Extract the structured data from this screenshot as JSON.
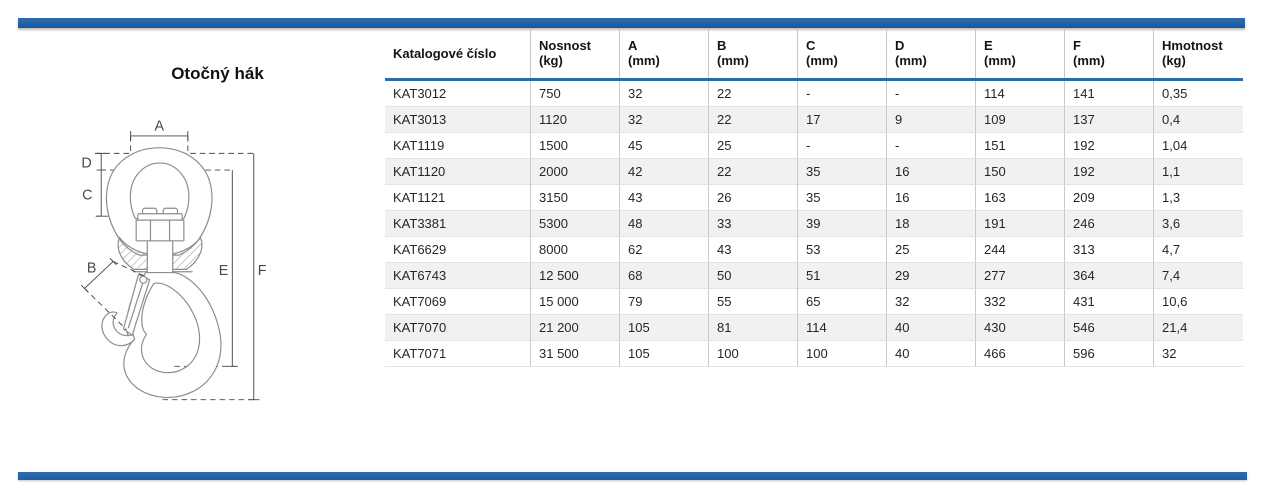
{
  "page": {
    "accent_color": "#2263a8",
    "row_alt_color": "#f1f1f1"
  },
  "diagram": {
    "title": "Otočný hák",
    "labels": {
      "a": "A",
      "b": "B",
      "c": "C",
      "d": "D",
      "e": "E",
      "f": "F"
    }
  },
  "table": {
    "columns": [
      {
        "label": "Katalogové číslo",
        "unit": ""
      },
      {
        "label": "Nosnost",
        "unit": "(kg)"
      },
      {
        "label": "A",
        "unit": "(mm)"
      },
      {
        "label": "B",
        "unit": "(mm)"
      },
      {
        "label": "C",
        "unit": "(mm)"
      },
      {
        "label": "D",
        "unit": "(mm)"
      },
      {
        "label": "E",
        "unit": "(mm)"
      },
      {
        "label": "F",
        "unit": "(mm)"
      },
      {
        "label": "Hmotnost",
        "unit": "(kg)"
      }
    ],
    "rows": [
      [
        "KAT3012",
        "750",
        "32",
        "22",
        "-",
        "-",
        "114",
        "141",
        "0,35"
      ],
      [
        "KAT3013",
        "1120",
        "32",
        "22",
        "17",
        "9",
        "109",
        "137",
        "0,4"
      ],
      [
        "KAT1119",
        "1500",
        "45",
        "25",
        "-",
        "-",
        "151",
        "192",
        "1,04"
      ],
      [
        "KAT1120",
        "2000",
        "42",
        "22",
        "35",
        "16",
        "150",
        "192",
        "1,1"
      ],
      [
        "KAT1121",
        "3150",
        "43",
        "26",
        "35",
        "16",
        "163",
        "209",
        "1,3"
      ],
      [
        "KAT3381",
        "5300",
        "48",
        "33",
        "39",
        "18",
        "191",
        "246",
        "3,6"
      ],
      [
        "KAT6629",
        "8000",
        "62",
        "43",
        "53",
        "25",
        "244",
        "313",
        "4,7"
      ],
      [
        "KAT6743",
        "12 500",
        "68",
        "50",
        "51",
        "29",
        "277",
        "364",
        "7,4"
      ],
      [
        "KAT7069",
        "15 000",
        "79",
        "55",
        "65",
        "32",
        "332",
        "431",
        "10,6"
      ],
      [
        "KAT7070",
        "21 200",
        "105",
        "81",
        "114",
        "40",
        "430",
        "546",
        "21,4"
      ],
      [
        "KAT7071",
        "31 500",
        "105",
        "100",
        "100",
        "40",
        "466",
        "596",
        "32"
      ]
    ]
  }
}
